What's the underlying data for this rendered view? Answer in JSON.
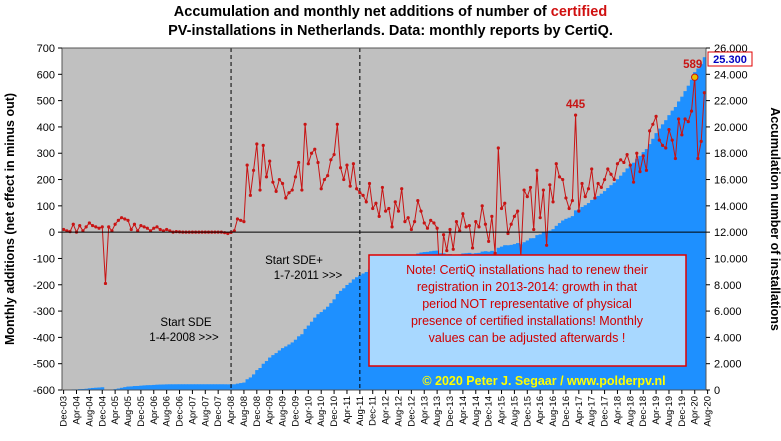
{
  "title": {
    "line1_pre": "Accumulation  and  monthly  net  additions  of  number  of ",
    "line1_highlight": "certified",
    "line2": "PV-installations  in  Netherlands. Data: monthly reports by CertiQ."
  },
  "chart_data": {
    "type": "bar+line",
    "ylabel": "Monthly additions (net effect in minus out)",
    "y2label": "Accumulation number of installations",
    "ylim": [
      -600,
      700
    ],
    "y2lim": [
      0,
      26000
    ],
    "yticks": [
      "-600",
      "-500",
      "-400",
      "-300",
      "-200",
      "-100",
      "0",
      "100",
      "200",
      "300",
      "400",
      "500",
      "600",
      "700"
    ],
    "y2ticks": [
      "0",
      "2.000",
      "4.000",
      "6.000",
      "8.000",
      "10.000",
      "12.000",
      "14.000",
      "16.000",
      "18.000",
      "20.000",
      "22.000",
      "24.000",
      "26.000"
    ],
    "xticks": [
      "Dec-03",
      "Apr-04",
      "Aug-04",
      "Dec-04",
      "Apr-05",
      "Aug-05",
      "Dec-05",
      "Apr-06",
      "Aug-06",
      "Dec-06",
      "Apr-07",
      "Aug-07",
      "Dec-07",
      "Apr-08",
      "Aug-08",
      "Dec-08",
      "Apr-09",
      "Aug-09",
      "Dec-09",
      "Apr-10",
      "Aug-10",
      "Dec-10",
      "Apr-11",
      "Aug-11",
      "Dec-11",
      "Apr-12",
      "Aug-12",
      "Dec-12",
      "Apr-13",
      "Aug-13",
      "Dec-13",
      "Apr-14",
      "Aug-14",
      "Dec-14",
      "Apr-15",
      "Aug-15",
      "Dec-15",
      "Apr-16",
      "Aug-16",
      "Dec-16",
      "Apr-17",
      "Aug-17",
      "Dec-17",
      "Apr-18",
      "Aug-18",
      "Dec-18",
      "Apr-19",
      "Aug-19",
      "Dec-19",
      "Apr-20",
      "Aug-20"
    ],
    "start_month": "Dec-03",
    "grid": false,
    "colors": {
      "plot_bg": "#c0c0c0",
      "accumulation": "#1e90ff",
      "monthly": "#c81414",
      "note_bg": "#a8d8ff",
      "note_border": "#e00000",
      "note_text": "#d00000",
      "copyright": "#ffff00"
    },
    "series": [
      {
        "name": "Monthly additions",
        "axis": "left",
        "values": [
          10,
          5,
          2,
          30,
          0,
          25,
          5,
          20,
          35,
          25,
          20,
          15,
          20,
          -195,
          20,
          5,
          30,
          45,
          55,
          50,
          45,
          10,
          30,
          5,
          25,
          20,
          15,
          5,
          15,
          20,
          10,
          5,
          10,
          5,
          0,
          2,
          1,
          0,
          0,
          0,
          0,
          0,
          0,
          0,
          0,
          0,
          0,
          0,
          0,
          0,
          -2,
          -5,
          -1,
          5,
          50,
          45,
          40,
          255,
          140,
          235,
          335,
          160,
          330,
          210,
          270,
          190,
          155,
          200,
          185,
          130,
          150,
          160,
          210,
          265,
          160,
          410,
          260,
          300,
          315,
          265,
          165,
          200,
          215,
          275,
          295,
          410,
          245,
          200,
          255,
          175,
          260,
          165,
          150,
          140,
          115,
          185,
          90,
          110,
          60,
          170,
          80,
          90,
          20,
          115,
          80,
          165,
          40,
          55,
          10,
          40,
          120,
          80,
          35,
          15,
          45,
          35,
          15,
          -200,
          -10,
          -70,
          10,
          -65,
          40,
          5,
          70,
          20,
          25,
          -60,
          40,
          20,
          100,
          30,
          -35,
          60,
          -80,
          320,
          90,
          110,
          -5,
          30,
          60,
          80,
          -95,
          160,
          135,
          170,
          10,
          235,
          55,
          160,
          -50,
          180,
          115,
          260,
          210,
          200,
          130,
          90,
          120,
          445,
          80,
          185,
          135,
          165,
          240,
          130,
          185,
          170,
          200,
          240,
          220,
          200,
          260,
          275,
          265,
          295,
          255,
          190,
          300,
          230,
          290,
          235,
          385,
          410,
          440,
          350,
          330,
          320,
          390,
          350,
          280,
          430,
          370,
          430,
          420,
          460,
          589,
          280,
          345,
          530
        ]
      },
      {
        "name": "Accumulation",
        "axis": "right",
        "values_hint": "cumulative sum from 0 at Dec-03 of monthly additions, scaled by right axis"
      }
    ],
    "annotations": {
      "peak_2017": "445",
      "peak_2020": "589",
      "last_value": "25.300",
      "sde_label": "Start SDE",
      "sde_date": "1-4-2008",
      "sde_arrow": ">>>",
      "sdeplus_label": "Start SDE+",
      "sdeplus_date": "1-7-2011",
      "sdeplus_arrow": ">>>"
    },
    "note": [
      "Note! CertiQ installations had to renew their",
      "registration in 2013-2014: growth in that",
      "period NOT representative of physical",
      "presence of certified installations! Monthly",
      "values can be adjusted afterwards !"
    ],
    "copyright": "© 2020 Peter J. Segaar / www.polderpv.nl"
  }
}
